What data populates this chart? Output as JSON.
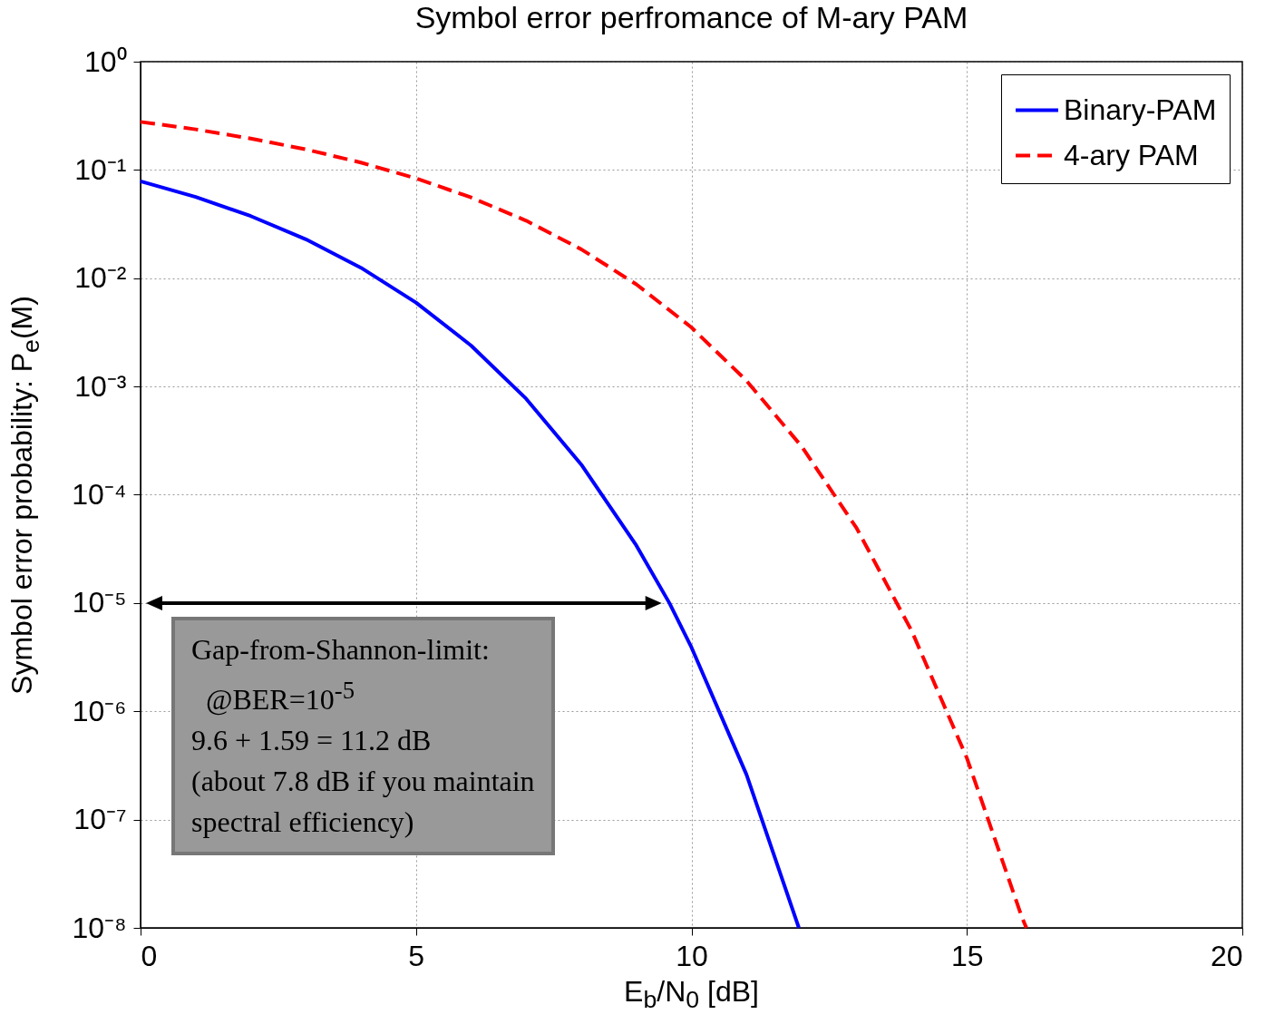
{
  "chart_data": {
    "type": "line",
    "title": "Symbol error perfromance of M-ary PAM",
    "xlabel": "E$_{b}$/N$_{0}$ [dB]",
    "ylabel": "Symbol error probability: P$_{e}$(M)",
    "log": "y",
    "grid": true,
    "legend": "top right",
    "marker": "none",
    "xlim": [
      0,
      20
    ],
    "xticks": [
      0,
      5,
      10,
      15,
      20
    ],
    "ylim": [
      1e-08,
      1
    ],
    "yticks": [
      {
        "value": 1,
        "label": "10⁰"
      },
      {
        "value": 0.1,
        "label": "10⁻¹"
      },
      {
        "value": 0.01,
        "label": "10⁻²"
      },
      {
        "value": 0.001,
        "label": "10⁻³"
      },
      {
        "value": 0.0001,
        "label": "10⁻⁴"
      },
      {
        "value": 1e-05,
        "label": "10⁻⁵"
      },
      {
        "value": 1e-06,
        "label": "10⁻⁶"
      },
      {
        "value": 1e-07,
        "label": "10⁻⁷"
      },
      {
        "value": 1e-08,
        "label": "10⁻⁸"
      }
    ],
    "series": [
      {
        "name": "Binary-PAM",
        "color": "#0000ff",
        "line_style": "solid",
        "x": [
          0,
          1,
          2,
          3,
          4,
          5,
          6,
          7,
          8,
          9,
          9.6,
          10,
          11,
          11.95
        ],
        "values": [
          0.0786,
          0.0563,
          0.0375,
          0.0229,
          0.0125,
          0.00595,
          0.00239,
          0.00077,
          0.00019,
          3.4e-05,
          1e-05,
          3.9e-06,
          2.6e-07,
          1e-08
        ]
      },
      {
        "name": "4-ary PAM",
        "color": "#ff0000",
        "line_style": "dashed",
        "x": [
          0,
          1,
          2,
          3,
          4,
          5,
          6,
          7,
          8,
          9,
          10,
          11,
          12,
          13,
          14,
          15,
          16,
          16.08
        ],
        "values": [
          0.278,
          0.237,
          0.195,
          0.155,
          0.117,
          0.0837,
          0.0557,
          0.034,
          0.0185,
          0.00878,
          0.00351,
          0.00113,
          0.00028,
          4.9e-05,
          5.5e-06,
          3.7e-07,
          1.25e-08,
          1e-08
        ]
      }
    ],
    "annotations": [
      "Gap-from-Shannon-limit:\n  @BER=10$^{-5}$\n9.6 + 1.59 = 11.2 dB\n(about 7.8 dB if you maintain\nspectral efficiency)"
    ]
  }
}
